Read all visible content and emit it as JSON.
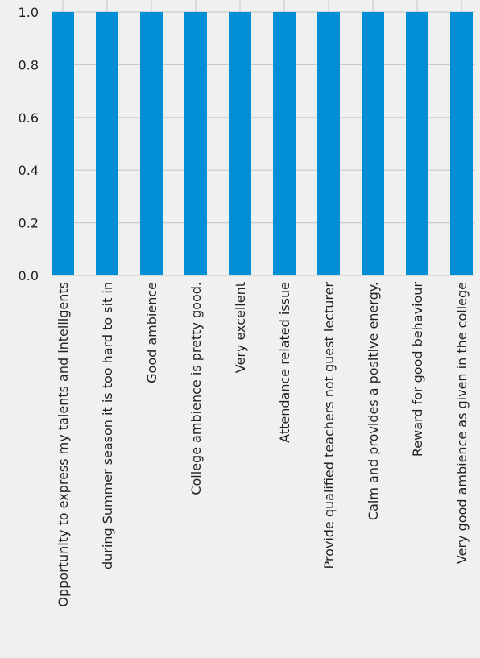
{
  "chart_data": {
    "type": "bar",
    "categories": [
      "Opportunity to express my talents and intelligents",
      "during Summer season it is too hard to sit in",
      "Good ambience",
      "College ambience is pretty good.",
      "Very excellent",
      "Attendance related issue",
      "Provide qualified teachers not guest lecturer",
      "Calm and provides a positive  energy.",
      "Reward for good behaviour",
      "Very good ambience as given in the college"
    ],
    "values": [
      1.0,
      1.0,
      1.0,
      1.0,
      1.0,
      1.0,
      1.0,
      1.0,
      1.0,
      1.0
    ],
    "yticks": [
      "0.0",
      "0.2",
      "0.4",
      "0.6",
      "0.8",
      "1.0"
    ],
    "ylim": [
      0,
      1.0
    ],
    "grid": true,
    "title": "",
    "xlabel": "",
    "ylabel": "",
    "colors": {
      "bar": "#008fd5",
      "background": "#f0f0f0",
      "grid": "#cbcbcb",
      "text": "#222222"
    }
  }
}
